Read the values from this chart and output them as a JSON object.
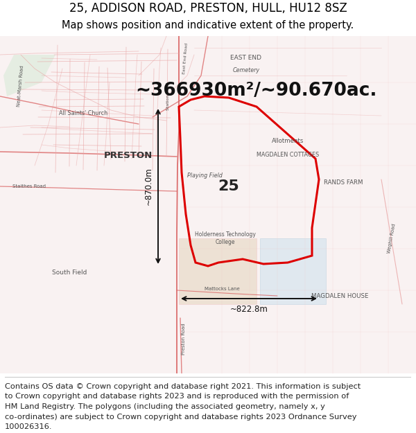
{
  "title": "25, ADDISON ROAD, PRESTON, HULL, HU12 8SZ",
  "subtitle": "Map shows position and indicative extent of the property.",
  "area_text": "~366930m²/~90.670ac.",
  "parcel_label": "25",
  "dim_horizontal": "~822.8m",
  "dim_vertical": "~870.0m",
  "footer_lines": [
    "Contains OS data © Crown copyright and database right 2021. This information is subject",
    "to Crown copyright and database rights 2023 and is reproduced with the permission of",
    "HM Land Registry. The polygons (including the associated geometry, namely x, y",
    "co-ordinates) are subject to Crown copyright and database rights 2023 Ordnance Survey",
    "100026316."
  ],
  "bg_color": "#ffffff",
  "map_bg": "#f8f0f0",
  "parcel_edge": "#dd0000",
  "parcel_lw": 2.2,
  "dim_line_color": "#111111",
  "title_fontsize": 12,
  "subtitle_fontsize": 10.5,
  "area_fontsize": 19,
  "label_fontsize": 16,
  "footer_fontsize": 8.2,
  "figsize": [
    6.0,
    6.25
  ],
  "dpi": 100,
  "road_red": "#d96060",
  "road_red_light": "#e8a0a0",
  "road_red_faint": "#f0c8c8",
  "green_area": "#d8ead8",
  "blue_area": "#cce0ee",
  "beige_area": "#e8dac8",
  "label_color": "#555555",
  "place_color": "#333333"
}
